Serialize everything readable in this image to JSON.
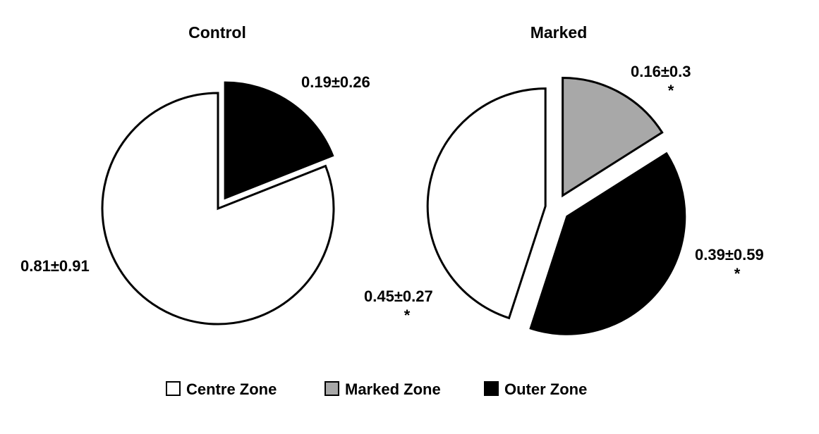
{
  "chart_data": [
    {
      "type": "pie",
      "title": "Control",
      "slices": [
        {
          "name": "Outer Zone",
          "value": 0.19,
          "label": "0.19±0.26",
          "significance": "",
          "color": "#000000"
        },
        {
          "name": "Centre Zone",
          "value": 0.81,
          "label": "0.81±0.91",
          "significance": "",
          "color": "#ffffff"
        }
      ],
      "exploded_slice": "Outer Zone",
      "start": "12 o'clock, clockwise"
    },
    {
      "type": "pie",
      "title": "Marked",
      "slices": [
        {
          "name": "Marked Zone",
          "value": 0.16,
          "label": "0.16±0.3",
          "significance": "*",
          "color": "#a8a8a8"
        },
        {
          "name": "Outer Zone",
          "value": 0.39,
          "label": "0.39±0.59",
          "significance": "*",
          "color": "#000000"
        },
        {
          "name": "Centre Zone",
          "value": 0.45,
          "label": "0.45±0.27",
          "significance": "*",
          "color": "#ffffff"
        }
      ],
      "exploded_slice": "all",
      "start": "12 o'clock, clockwise"
    }
  ],
  "legend": {
    "placement": "bottom",
    "items": [
      {
        "label": "Centre Zone",
        "color": "#ffffff"
      },
      {
        "label": "Marked Zone",
        "color": "#a8a8a8"
      },
      {
        "label": "Outer Zone",
        "color": "#000000"
      }
    ]
  }
}
